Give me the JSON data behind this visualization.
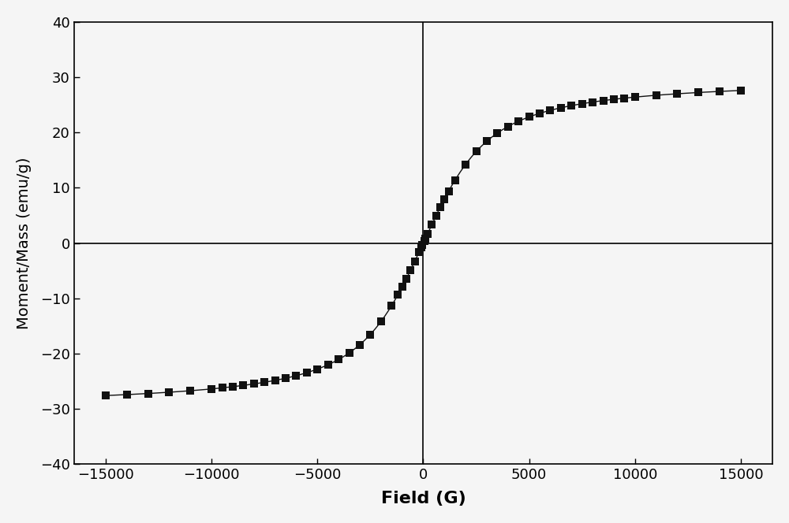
{
  "title": "",
  "xlabel": "Field (G)",
  "ylabel": "Moment/Mass (emu/g)",
  "xlim": [
    -16500,
    16500
  ],
  "ylim": [
    -40,
    40
  ],
  "xticks": [
    -15000,
    -10000,
    -5000,
    0,
    5000,
    10000,
    15000
  ],
  "yticks": [
    -40,
    -30,
    -20,
    -10,
    0,
    10,
    20,
    30,
    40
  ],
  "marker": "s",
  "marker_color": "#111111",
  "marker_size": 55,
  "line_color": "#111111",
  "line_width": 1.0,
  "background_color": "#f5f5f5",
  "xlabel_fontsize": 16,
  "ylabel_fontsize": 14,
  "tick_fontsize": 13,
  "scatter_fields": [
    -15000,
    -14000,
    -13000,
    -12000,
    -11000,
    -10000,
    -9500,
    -9000,
    -8500,
    -8000,
    -7500,
    -7000,
    -6500,
    -6000,
    -5500,
    -5000,
    -4500,
    -4000,
    -3500,
    -3000,
    -2500,
    -2000,
    -1500,
    -1200,
    -1000,
    -800,
    -600,
    -400,
    -200,
    -100,
    -50,
    50,
    100,
    200,
    400,
    600,
    800,
    1000,
    1200,
    1500,
    2000,
    2500,
    3000,
    3500,
    4000,
    4500,
    5000,
    5500,
    6000,
    6500,
    7000,
    7500,
    8000,
    8500,
    9000,
    9500,
    10000,
    11000,
    12000,
    13000,
    14000,
    15000
  ],
  "Ms": 30.0,
  "a": 1200.0
}
